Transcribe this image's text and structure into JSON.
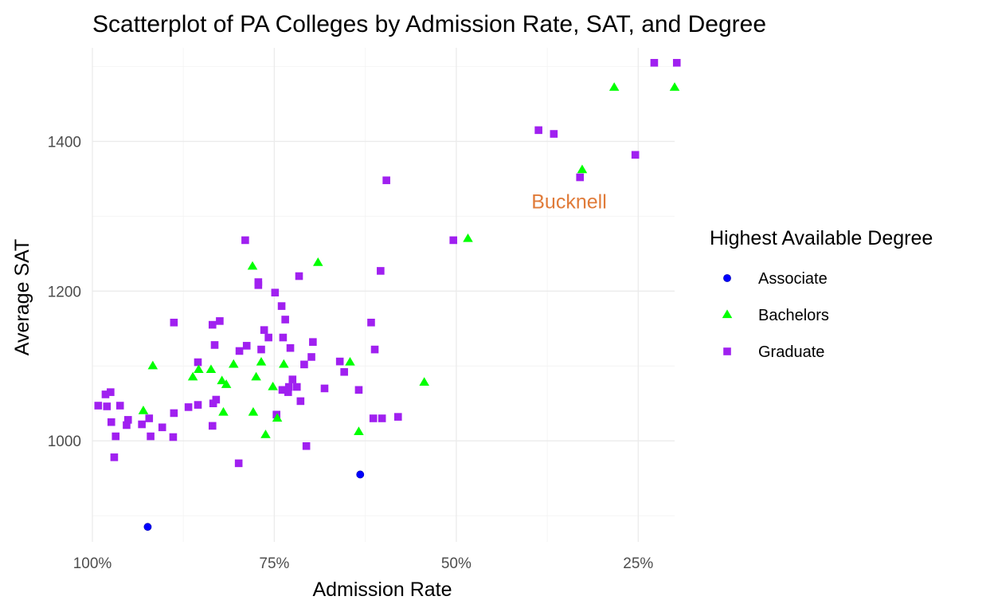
{
  "chart_data": {
    "type": "scatter",
    "title": "Scatterplot of PA Colleges by Admission Rate, SAT, and Degree",
    "xlabel": "Admission Rate",
    "ylabel": "Average SAT",
    "x_reversed": true,
    "xlim": [
      1.0,
      0.2
    ],
    "ylim": [
      865,
      1525
    ],
    "x_ticks": [
      1.0,
      0.75,
      0.5,
      0.25
    ],
    "x_tick_labels": [
      "100%",
      "75%",
      "50%",
      "25%"
    ],
    "y_ticks": [
      1000,
      1200,
      1400
    ],
    "y_tick_labels": [
      "1000",
      "1200",
      "1400"
    ],
    "grid": true,
    "legend": {
      "title": "Highest Available Degree",
      "position": "right",
      "entries": [
        {
          "name": "Associate",
          "shape": "circle",
          "color": "#0000ff"
        },
        {
          "name": "Bachelors",
          "shape": "triangle",
          "color": "#00ff00"
        },
        {
          "name": "Graduate",
          "shape": "square",
          "color": "#a020f0"
        }
      ]
    },
    "annotations": [
      {
        "text": "Bucknell",
        "x": 0.345,
        "y": 1320,
        "color": "#e07b39"
      }
    ],
    "series": [
      {
        "name": "Associate",
        "points": [
          [
            0.924,
            885
          ],
          [
            0.632,
            955
          ]
        ]
      },
      {
        "name": "Bachelors",
        "points": [
          [
            0.2,
            1472
          ],
          [
            0.283,
            1472
          ],
          [
            0.327,
            1362
          ],
          [
            0.484,
            1270
          ],
          [
            0.69,
            1238
          ],
          [
            0.78,
            1233
          ],
          [
            0.854,
            1095
          ],
          [
            0.837,
            1095
          ],
          [
            0.822,
            1080
          ],
          [
            0.816,
            1075
          ],
          [
            0.806,
            1102
          ],
          [
            0.862,
            1085
          ],
          [
            0.917,
            1100
          ],
          [
            0.93,
            1040
          ],
          [
            0.752,
            1072
          ],
          [
            0.775,
            1085
          ],
          [
            0.768,
            1105
          ],
          [
            0.737,
            1102
          ],
          [
            0.762,
            1008
          ],
          [
            0.746,
            1030
          ],
          [
            0.82,
            1038
          ],
          [
            0.779,
            1038
          ],
          [
            0.646,
            1105
          ],
          [
            0.634,
            1012
          ],
          [
            0.544,
            1078
          ]
        ]
      },
      {
        "name": "Graduate",
        "points": [
          [
            0.228,
            1505
          ],
          [
            0.197,
            1505
          ],
          [
            0.387,
            1415
          ],
          [
            0.366,
            1410
          ],
          [
            0.254,
            1382
          ],
          [
            0.33,
            1352
          ],
          [
            0.596,
            1348
          ],
          [
            0.504,
            1268
          ],
          [
            0.79,
            1268
          ],
          [
            0.604,
            1227
          ],
          [
            0.716,
            1220
          ],
          [
            0.772,
            1212
          ],
          [
            0.772,
            1208
          ],
          [
            0.749,
            1198
          ],
          [
            0.74,
            1180
          ],
          [
            0.735,
            1162
          ],
          [
            0.825,
            1160
          ],
          [
            0.888,
            1158
          ],
          [
            0.617,
            1158
          ],
          [
            0.835,
            1155
          ],
          [
            0.764,
            1148
          ],
          [
            0.758,
            1138
          ],
          [
            0.738,
            1138
          ],
          [
            0.697,
            1132
          ],
          [
            0.832,
            1128
          ],
          [
            0.788,
            1127
          ],
          [
            0.728,
            1124
          ],
          [
            0.768,
            1122
          ],
          [
            0.612,
            1122
          ],
          [
            0.798,
            1120
          ],
          [
            0.699,
            1112
          ],
          [
            0.709,
            1102
          ],
          [
            0.66,
            1106
          ],
          [
            0.654,
            1092
          ],
          [
            0.855,
            1105
          ],
          [
            0.725,
            1082
          ],
          [
            0.73,
            1072
          ],
          [
            0.719,
            1072
          ],
          [
            0.739,
            1068
          ],
          [
            0.731,
            1065
          ],
          [
            0.681,
            1070
          ],
          [
            0.634,
            1068
          ],
          [
            0.714,
            1053
          ],
          [
            0.83,
            1055
          ],
          [
            0.834,
            1050
          ],
          [
            0.855,
            1048
          ],
          [
            0.868,
            1045
          ],
          [
            0.975,
            1065
          ],
          [
            0.982,
            1062
          ],
          [
            0.992,
            1047
          ],
          [
            0.98,
            1046
          ],
          [
            0.962,
            1047
          ],
          [
            0.888,
            1037
          ],
          [
            0.922,
            1030
          ],
          [
            0.951,
            1028
          ],
          [
            0.974,
            1025
          ],
          [
            0.953,
            1021
          ],
          [
            0.932,
            1022
          ],
          [
            0.889,
            1005
          ],
          [
            0.904,
            1018
          ],
          [
            0.92,
            1006
          ],
          [
            0.968,
            1006
          ],
          [
            0.747,
            1035
          ],
          [
            0.614,
            1030
          ],
          [
            0.58,
            1032
          ],
          [
            0.602,
            1030
          ],
          [
            0.835,
            1020
          ],
          [
            0.706,
            993
          ],
          [
            0.799,
            970
          ],
          [
            0.97,
            978
          ]
        ]
      }
    ]
  }
}
